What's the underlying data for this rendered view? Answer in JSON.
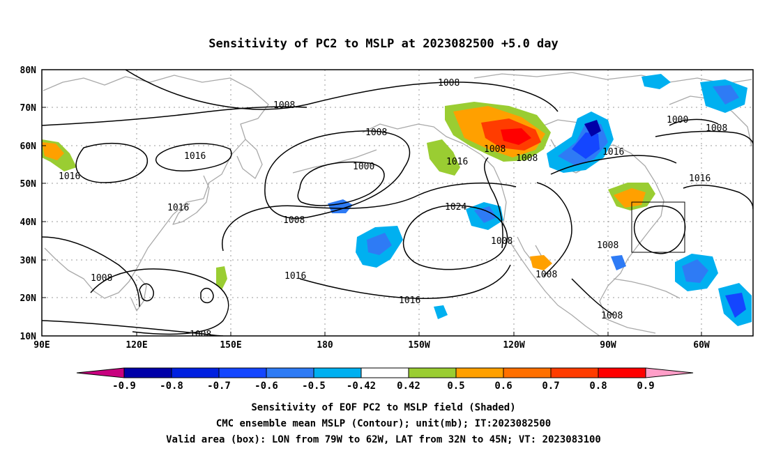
{
  "title": "Sensitivity of PC2 to MSLP at 2023082500 +5.0 day",
  "lat_labels": [
    "80N",
    "70N",
    "60N",
    "50N",
    "40N",
    "30N",
    "20N",
    "10N"
  ],
  "lon_labels": [
    "90E",
    "120E",
    "150E",
    "180",
    "150W",
    "120W",
    "90W",
    "60W"
  ],
  "colorbar": {
    "ticks": [
      "-0.9",
      "-0.8",
      "-0.7",
      "-0.6",
      "-0.5",
      "-0.42",
      "0.42",
      "0.5",
      "0.6",
      "0.7",
      "0.8",
      "0.9"
    ],
    "colors": [
      "#c8007f",
      "#0000a8",
      "#0020e0",
      "#1446ff",
      "#2e7bf5",
      "#00b0f0",
      "#ffffff",
      "#9acd32",
      "#ffa000",
      "#ff7000",
      "#ff3c00",
      "#ff0000",
      "#ff9ec8"
    ]
  },
  "contour_labels": [
    {
      "value": "1008"
    },
    {
      "value": "1008"
    },
    {
      "value": "1008"
    },
    {
      "value": "1016"
    },
    {
      "value": "1016"
    },
    {
      "value": "1016"
    },
    {
      "value": "1000"
    },
    {
      "value": "1008"
    },
    {
      "value": "1016"
    },
    {
      "value": "1008"
    },
    {
      "value": "1008"
    },
    {
      "value": "1024"
    },
    {
      "value": "1008"
    },
    {
      "value": "1016"
    },
    {
      "value": "1016"
    },
    {
      "value": "1008"
    },
    {
      "value": "1008"
    },
    {
      "value": "1008"
    },
    {
      "value": "1000"
    },
    {
      "value": "1008"
    },
    {
      "value": "1016"
    },
    {
      "value": "1016"
    },
    {
      "value": "1008"
    },
    {
      "value": "1008"
    }
  ],
  "caption": {
    "line1": "Sensitivity of EOF PC2 to MSLP field (Shaded)",
    "line2": "CMC ensemble mean MSLP (Contour); unit(mb); IT:2023082500",
    "line3": "Valid area (box): LON from 79W to 62W, LAT from 32N to 45N; VT: 2023083100"
  }
}
